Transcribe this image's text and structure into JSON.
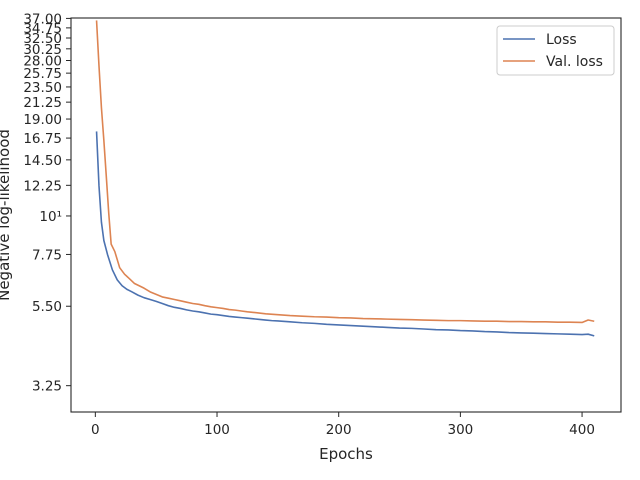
{
  "chart_data": {
    "type": "line",
    "title": "",
    "xlabel": "Epochs",
    "ylabel": "Negative log-likelihood",
    "xlim": [
      -20,
      432
    ],
    "ylim": [
      2.73,
      37.1
    ],
    "y_scale": "log",
    "grid": false,
    "legend_position": "top-right",
    "x_ticks": [
      0,
      100,
      200,
      300,
      400
    ],
    "y_ticks": [
      {
        "value": 3.25,
        "label": "3.25"
      },
      {
        "value": 5.5,
        "label": "5.50"
      },
      {
        "value": 7.75,
        "label": "7.75"
      },
      {
        "value": 10,
        "label": "10¹"
      },
      {
        "value": 12.25,
        "label": "12.25"
      },
      {
        "value": 14.5,
        "label": "14.50"
      },
      {
        "value": 16.75,
        "label": "16.75"
      },
      {
        "value": 19,
        "label": "19.00"
      },
      {
        "value": 21.25,
        "label": "21.25"
      },
      {
        "value": 23.5,
        "label": "23.50"
      },
      {
        "value": 25.75,
        "label": "25.75"
      },
      {
        "value": 28,
        "label": "28.00"
      },
      {
        "value": 30.25,
        "label": "30.25"
      },
      {
        "value": 32.5,
        "label": "32.50"
      },
      {
        "value": 34.75,
        "label": "34.75"
      },
      {
        "value": 37,
        "label": "37.00"
      }
    ],
    "series": [
      {
        "name": "Loss",
        "color": "#4c72b0",
        "x": [
          1,
          3,
          5,
          7,
          10,
          14,
          18,
          22,
          26,
          30,
          35,
          40,
          45,
          50,
          55,
          60,
          65,
          70,
          75,
          80,
          85,
          90,
          95,
          100,
          105,
          110,
          115,
          120,
          125,
          130,
          135,
          140,
          145,
          150,
          160,
          170,
          180,
          190,
          200,
          210,
          220,
          230,
          240,
          250,
          260,
          270,
          280,
          290,
          300,
          310,
          320,
          330,
          340,
          350,
          360,
          370,
          380,
          390,
          400,
          405,
          410
        ],
        "y": [
          17.5,
          12.2,
          9.6,
          8.5,
          7.75,
          7.0,
          6.55,
          6.3,
          6.15,
          6.05,
          5.92,
          5.82,
          5.75,
          5.68,
          5.6,
          5.52,
          5.46,
          5.42,
          5.37,
          5.33,
          5.3,
          5.26,
          5.22,
          5.2,
          5.17,
          5.14,
          5.12,
          5.1,
          5.08,
          5.06,
          5.04,
          5.02,
          5.0,
          4.99,
          4.96,
          4.93,
          4.91,
          4.88,
          4.86,
          4.84,
          4.82,
          4.8,
          4.78,
          4.76,
          4.75,
          4.73,
          4.71,
          4.7,
          4.68,
          4.67,
          4.65,
          4.64,
          4.62,
          4.61,
          4.6,
          4.59,
          4.58,
          4.57,
          4.56,
          4.57,
          4.52
        ]
      },
      {
        "name": "Val. loss",
        "color": "#dd8452",
        "x": [
          1,
          3,
          5,
          7,
          9,
          11,
          13,
          16,
          20,
          24,
          28,
          32,
          36,
          40,
          45,
          50,
          55,
          60,
          65,
          70,
          75,
          80,
          85,
          90,
          95,
          100,
          105,
          110,
          115,
          120,
          125,
          130,
          140,
          150,
          160,
          170,
          180,
          190,
          200,
          210,
          220,
          230,
          240,
          250,
          260,
          270,
          280,
          290,
          300,
          310,
          320,
          330,
          340,
          350,
          360,
          370,
          380,
          390,
          400,
          405,
          410
        ],
        "y": [
          36.5,
          27.0,
          20.5,
          16.5,
          13.0,
          10.2,
          8.3,
          7.9,
          7.1,
          6.8,
          6.6,
          6.4,
          6.3,
          6.2,
          6.05,
          5.95,
          5.85,
          5.8,
          5.75,
          5.7,
          5.65,
          5.6,
          5.57,
          5.52,
          5.48,
          5.45,
          5.42,
          5.38,
          5.36,
          5.33,
          5.3,
          5.28,
          5.23,
          5.2,
          5.17,
          5.15,
          5.13,
          5.12,
          5.1,
          5.09,
          5.07,
          5.06,
          5.05,
          5.04,
          5.03,
          5.02,
          5.01,
          5.0,
          5.0,
          4.99,
          4.98,
          4.98,
          4.97,
          4.97,
          4.96,
          4.96,
          4.95,
          4.95,
          4.94,
          5.02,
          4.98
        ]
      }
    ]
  }
}
